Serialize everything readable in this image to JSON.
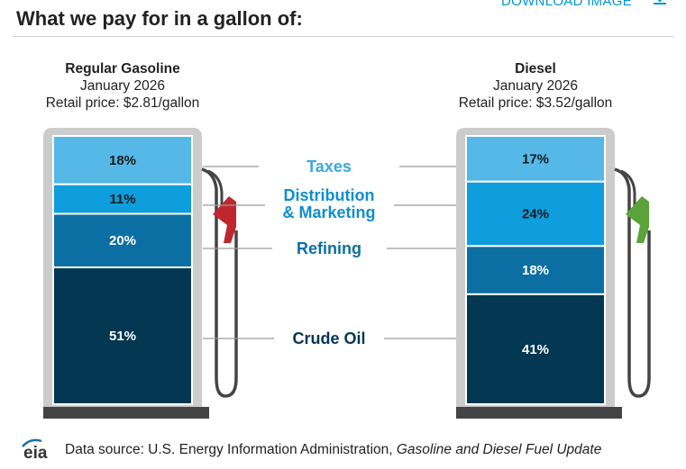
{
  "header": {
    "title": "What we pay for in a gallon of:",
    "download_label": "DOWNLOAD IMAGE"
  },
  "pumps": [
    {
      "name": "Regular Gasoline",
      "period": "January 2026",
      "price_label": "Retail price: $2.81/gallon",
      "nozzle_color": "#c0272d"
    },
    {
      "name": "Diesel",
      "period": "January 2026",
      "price_label": "Retail price: $3.52/gallon",
      "nozzle_color": "#5aa33b"
    }
  ],
  "chart_data": {
    "type": "bar",
    "stacked": true,
    "categories": [
      "Regular Gasoline",
      "Diesel"
    ],
    "series": [
      {
        "name": "Crude Oil",
        "color": "#043752",
        "values": [
          51,
          41
        ]
      },
      {
        "name": "Refining",
        "color": "#0c6fa3",
        "values": [
          20,
          18
        ]
      },
      {
        "name": "Distribution & Marketing",
        "color": "#0e9ddd",
        "values": [
          11,
          24
        ]
      },
      {
        "name": "Taxes",
        "color": "#55b8e6",
        "values": [
          18,
          17
        ]
      }
    ],
    "value_labels": {
      "gasoline": [
        "51%",
        "20%",
        "11%",
        "18%"
      ],
      "diesel": [
        "41%",
        "18%",
        "24%",
        "17%"
      ]
    },
    "unit": "%",
    "ylim": [
      0,
      100
    ]
  },
  "legend_labels": {
    "taxes": "Taxes",
    "distribution_line1": "Distribution",
    "distribution_line2": "& Marketing",
    "refining": "Refining",
    "crude": "Crude Oil"
  },
  "footer": {
    "prefix": "Data source: U.S. Energy Information Administration, ",
    "source_title": "Gasoline and Diesel Fuel Update",
    "logo_text": "eia"
  }
}
